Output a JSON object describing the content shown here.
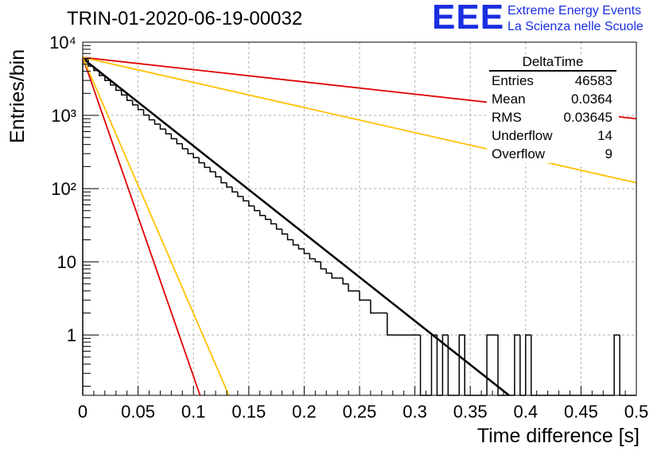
{
  "title": "TRIN-01-2020-06-19-00032",
  "logo": {
    "mark": "EEE",
    "line1": "Extreme Energy Events",
    "line2": "La Scienza nelle Scuole",
    "color": "#1a2ee0"
  },
  "stats_box": {
    "title": "DeltaTime",
    "rows": [
      {
        "label": "Entries",
        "value": "46583"
      },
      {
        "label": "Mean",
        "value": "0.0364"
      },
      {
        "label": "RMS",
        "value": "0.03645"
      },
      {
        "label": "Underflow",
        "value": "14"
      },
      {
        "label": "Overflow",
        "value": "9"
      }
    ]
  },
  "chart_data": {
    "type": "line",
    "xlabel": "Time difference [s]",
    "ylabel": "Entries/bin",
    "xlim": [
      0,
      0.5
    ],
    "ylim": [
      0.15,
      10000
    ],
    "yscale": "log",
    "grid": true,
    "xticks": [
      "0",
      "0.05",
      "0.1",
      "0.15",
      "0.2",
      "0.25",
      "0.3",
      "0.35",
      "0.4",
      "0.45",
      "0.5"
    ],
    "yticks": [
      {
        "value": 1,
        "label": "1"
      },
      {
        "value": 10,
        "label": "10"
      },
      {
        "value": 100,
        "label": "10²"
      },
      {
        "value": 1000,
        "label": "10³"
      },
      {
        "value": 10000,
        "label": "10⁴"
      }
    ],
    "histogram": {
      "bin_width": 0.005,
      "color": "#000000",
      "counts": [
        5800,
        4700,
        4100,
        3500,
        3000,
        2600,
        2200,
        1900,
        1600,
        1390,
        1200,
        1010,
        870,
        760,
        650,
        560,
        480,
        410,
        350,
        300,
        265,
        225,
        195,
        170,
        145,
        120,
        105,
        90,
        78,
        68,
        58,
        50,
        43,
        38,
        33,
        28,
        24,
        20,
        17,
        15,
        13,
        11,
        10,
        8,
        7,
        6,
        6,
        5,
        4,
        4,
        3,
        3,
        2,
        2,
        2,
        1,
        1,
        1,
        1,
        1,
        1,
        0,
        0,
        1,
        0,
        1,
        0,
        0,
        1,
        0,
        0,
        0,
        0,
        1,
        1,
        0,
        0,
        0,
        1,
        0,
        1,
        0,
        0,
        0,
        0,
        0,
        0,
        0,
        0,
        0,
        0,
        0,
        0,
        0,
        0,
        0,
        1,
        0,
        0,
        0
      ]
    },
    "series": [
      {
        "color": "#000000",
        "values": [
          {
            "x": 0.0,
            "y": 6000
          },
          {
            "x": 0.385,
            "y": 0.15
          }
        ]
      },
      {
        "color": "#e00000",
        "values": [
          {
            "x": 0.0,
            "y": 6200
          },
          {
            "x": 0.5,
            "y": 900
          }
        ]
      },
      {
        "color": "#ffc000",
        "values": [
          {
            "x": 0.0,
            "y": 6200
          },
          {
            "x": 0.5,
            "y": 120
          }
        ]
      },
      {
        "color": "#e00000",
        "values": [
          {
            "x": 0.0,
            "y": 6200
          },
          {
            "x": 0.106,
            "y": 0.15
          }
        ]
      },
      {
        "color": "#ffc000",
        "values": [
          {
            "x": 0.0,
            "y": 6200
          },
          {
            "x": 0.132,
            "y": 0.15
          }
        ]
      }
    ]
  }
}
